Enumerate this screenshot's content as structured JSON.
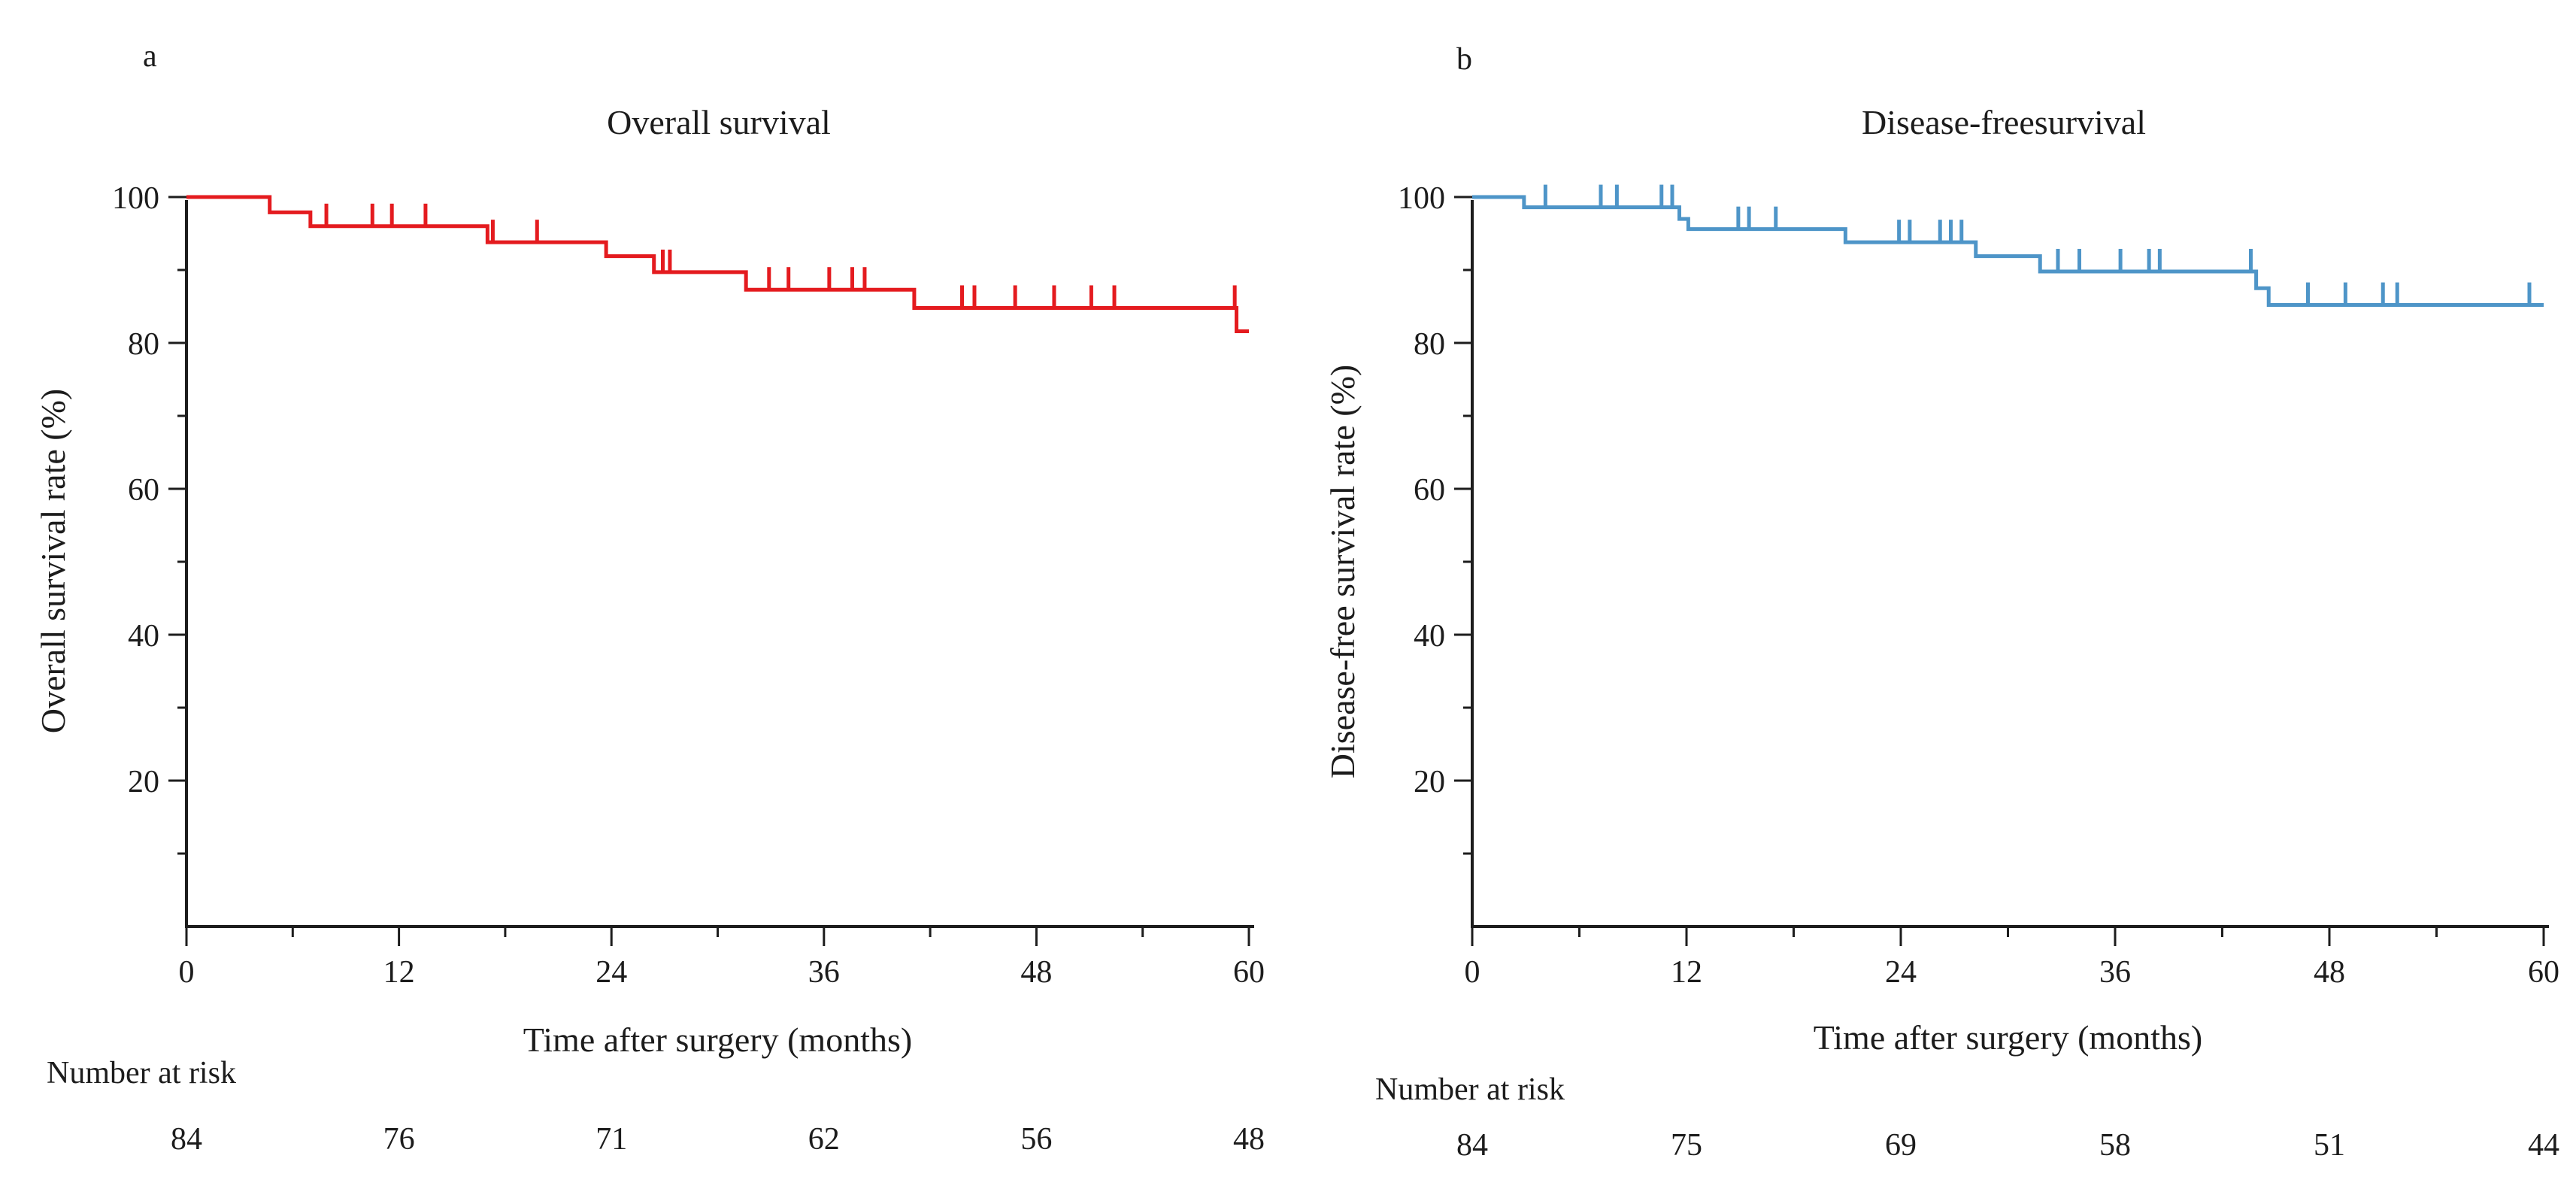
{
  "chart_data": [
    {
      "type": "line",
      "subtype": "kaplan-meier-step-curve",
      "panel_letter": "a",
      "title": "Overall survival",
      "xlabel": "Time after surgery (months)",
      "ylabel": "Overall survival rate (%)",
      "series_name": "Overall survival",
      "line_color": "#e41b1f",
      "xlim": [
        0,
        60
      ],
      "ylim": [
        0,
        100
      ],
      "x_ticks": [
        0,
        12,
        24,
        36,
        48,
        60
      ],
      "x_minor_ticks": [
        6,
        18,
        30,
        42,
        54
      ],
      "y_ticks": [
        100,
        80,
        60,
        40,
        20
      ],
      "y_minor_ticks": [
        90,
        70,
        50,
        30,
        10
      ],
      "grid": false,
      "legend": false,
      "steps": [
        [
          0,
          100
        ],
        [
          4.7,
          97.9
        ],
        [
          7.0,
          96.0
        ],
        [
          17.0,
          93.8
        ],
        [
          23.7,
          91.9
        ],
        [
          26.4,
          89.7
        ],
        [
          31.6,
          87.3
        ],
        [
          41.1,
          84.8
        ],
        [
          59.3,
          81.6
        ],
        [
          60,
          81.6
        ]
      ],
      "censor_marks": [
        [
          7.9,
          96.0
        ],
        [
          10.5,
          96.0
        ],
        [
          11.6,
          96.0
        ],
        [
          13.5,
          96.0
        ],
        [
          17.3,
          93.8
        ],
        [
          19.8,
          93.8
        ],
        [
          26.9,
          89.7
        ],
        [
          27.3,
          89.7
        ],
        [
          32.9,
          87.3
        ],
        [
          34.0,
          87.3
        ],
        [
          36.3,
          87.3
        ],
        [
          37.6,
          87.3
        ],
        [
          38.3,
          87.3
        ],
        [
          43.8,
          84.8
        ],
        [
          44.5,
          84.8
        ],
        [
          46.8,
          84.8
        ],
        [
          49.0,
          84.8
        ],
        [
          51.1,
          84.8
        ],
        [
          52.4,
          84.8
        ],
        [
          59.2,
          84.8
        ]
      ],
      "number_at_risk": {
        "label": "Number at risk",
        "times": [
          0,
          12,
          24,
          36,
          48,
          60
        ],
        "counts": [
          84,
          76,
          71,
          62,
          56,
          48
        ]
      }
    },
    {
      "type": "line",
      "subtype": "kaplan-meier-step-curve",
      "panel_letter": "b",
      "title": "Disease-freesurvival",
      "xlabel": "Time after surgery (months)",
      "ylabel": "Disease-free survival rate (%)",
      "series_name": "Disease-free survival",
      "line_color": "#4e95c8",
      "xlim": [
        0,
        60
      ],
      "ylim": [
        0,
        100
      ],
      "x_ticks": [
        0,
        12,
        24,
        36,
        48,
        60
      ],
      "x_minor_ticks": [
        6,
        18,
        30,
        42,
        54
      ],
      "y_ticks": [
        100,
        80,
        60,
        40,
        20
      ],
      "y_minor_ticks": [
        90,
        70,
        50,
        30,
        10
      ],
      "grid": false,
      "legend": false,
      "steps": [
        [
          0,
          100
        ],
        [
          2.9,
          98.6
        ],
        [
          11.6,
          97.0
        ],
        [
          12.1,
          95.6
        ],
        [
          20.9,
          93.8
        ],
        [
          28.2,
          91.9
        ],
        [
          31.8,
          89.8
        ],
        [
          43.9,
          87.5
        ],
        [
          44.6,
          85.2
        ],
        [
          60,
          85.2
        ]
      ],
      "censor_marks": [
        [
          4.1,
          98.6
        ],
        [
          7.2,
          98.6
        ],
        [
          8.1,
          98.6
        ],
        [
          10.6,
          98.6
        ],
        [
          11.2,
          98.6
        ],
        [
          14.9,
          95.6
        ],
        [
          15.5,
          95.6
        ],
        [
          17.0,
          95.6
        ],
        [
          23.9,
          93.8
        ],
        [
          24.5,
          93.8
        ],
        [
          26.2,
          93.8
        ],
        [
          26.8,
          93.8
        ],
        [
          27.4,
          93.8
        ],
        [
          32.8,
          89.8
        ],
        [
          34.0,
          89.8
        ],
        [
          36.3,
          89.8
        ],
        [
          37.9,
          89.8
        ],
        [
          38.5,
          89.8
        ],
        [
          43.6,
          89.8
        ],
        [
          46.8,
          85.2
        ],
        [
          48.9,
          85.2
        ],
        [
          51.0,
          85.2
        ],
        [
          51.8,
          85.2
        ],
        [
          59.2,
          85.2
        ]
      ],
      "number_at_risk": {
        "label": "Number at risk",
        "times": [
          0,
          12,
          24,
          36,
          48,
          60
        ],
        "counts": [
          84,
          75,
          69,
          58,
          51,
          44
        ]
      }
    }
  ]
}
